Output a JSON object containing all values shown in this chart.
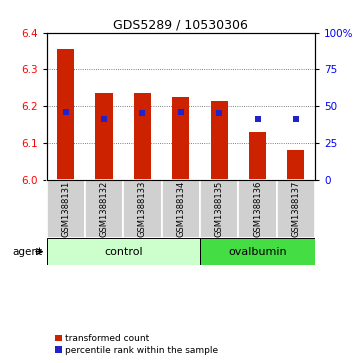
{
  "title": "GDS5289 / 10530306",
  "samples": [
    "GSM1388131",
    "GSM1388132",
    "GSM1388133",
    "GSM1388134",
    "GSM1388135",
    "GSM1388136",
    "GSM1388137"
  ],
  "bar_tops": [
    6.355,
    6.235,
    6.235,
    6.225,
    6.215,
    6.13,
    6.08
  ],
  "bar_bottom": 6.0,
  "percentile_values": [
    6.185,
    6.165,
    6.18,
    6.185,
    6.18,
    6.165,
    6.165
  ],
  "ylim_left": [
    6.0,
    6.4
  ],
  "ylim_right": [
    0,
    100
  ],
  "yticks_left": [
    6.0,
    6.1,
    6.2,
    6.3,
    6.4
  ],
  "yticks_right": [
    0,
    25,
    50,
    75,
    100
  ],
  "ytick_labels_right": [
    "0",
    "25",
    "50",
    "75",
    "100%"
  ],
  "bar_color": "#cc2200",
  "percentile_color": "#2222cc",
  "control_count": 4,
  "ovalbumin_count": 3,
  "control_label": "control",
  "ovalbumin_label": "ovalbumin",
  "agent_label": "agent",
  "legend1": "transformed count",
  "legend2": "percentile rank within the sample",
  "control_color": "#ccffcc",
  "ovalbumin_color": "#44dd44",
  "sample_box_color": "#d0d0d0",
  "grid_linestyle": "dotted",
  "grid_color": "#555555",
  "bar_width": 0.45,
  "title_fontsize": 9,
  "tick_fontsize": 7.5,
  "sample_fontsize": 6,
  "legend_fontsize": 6.5
}
